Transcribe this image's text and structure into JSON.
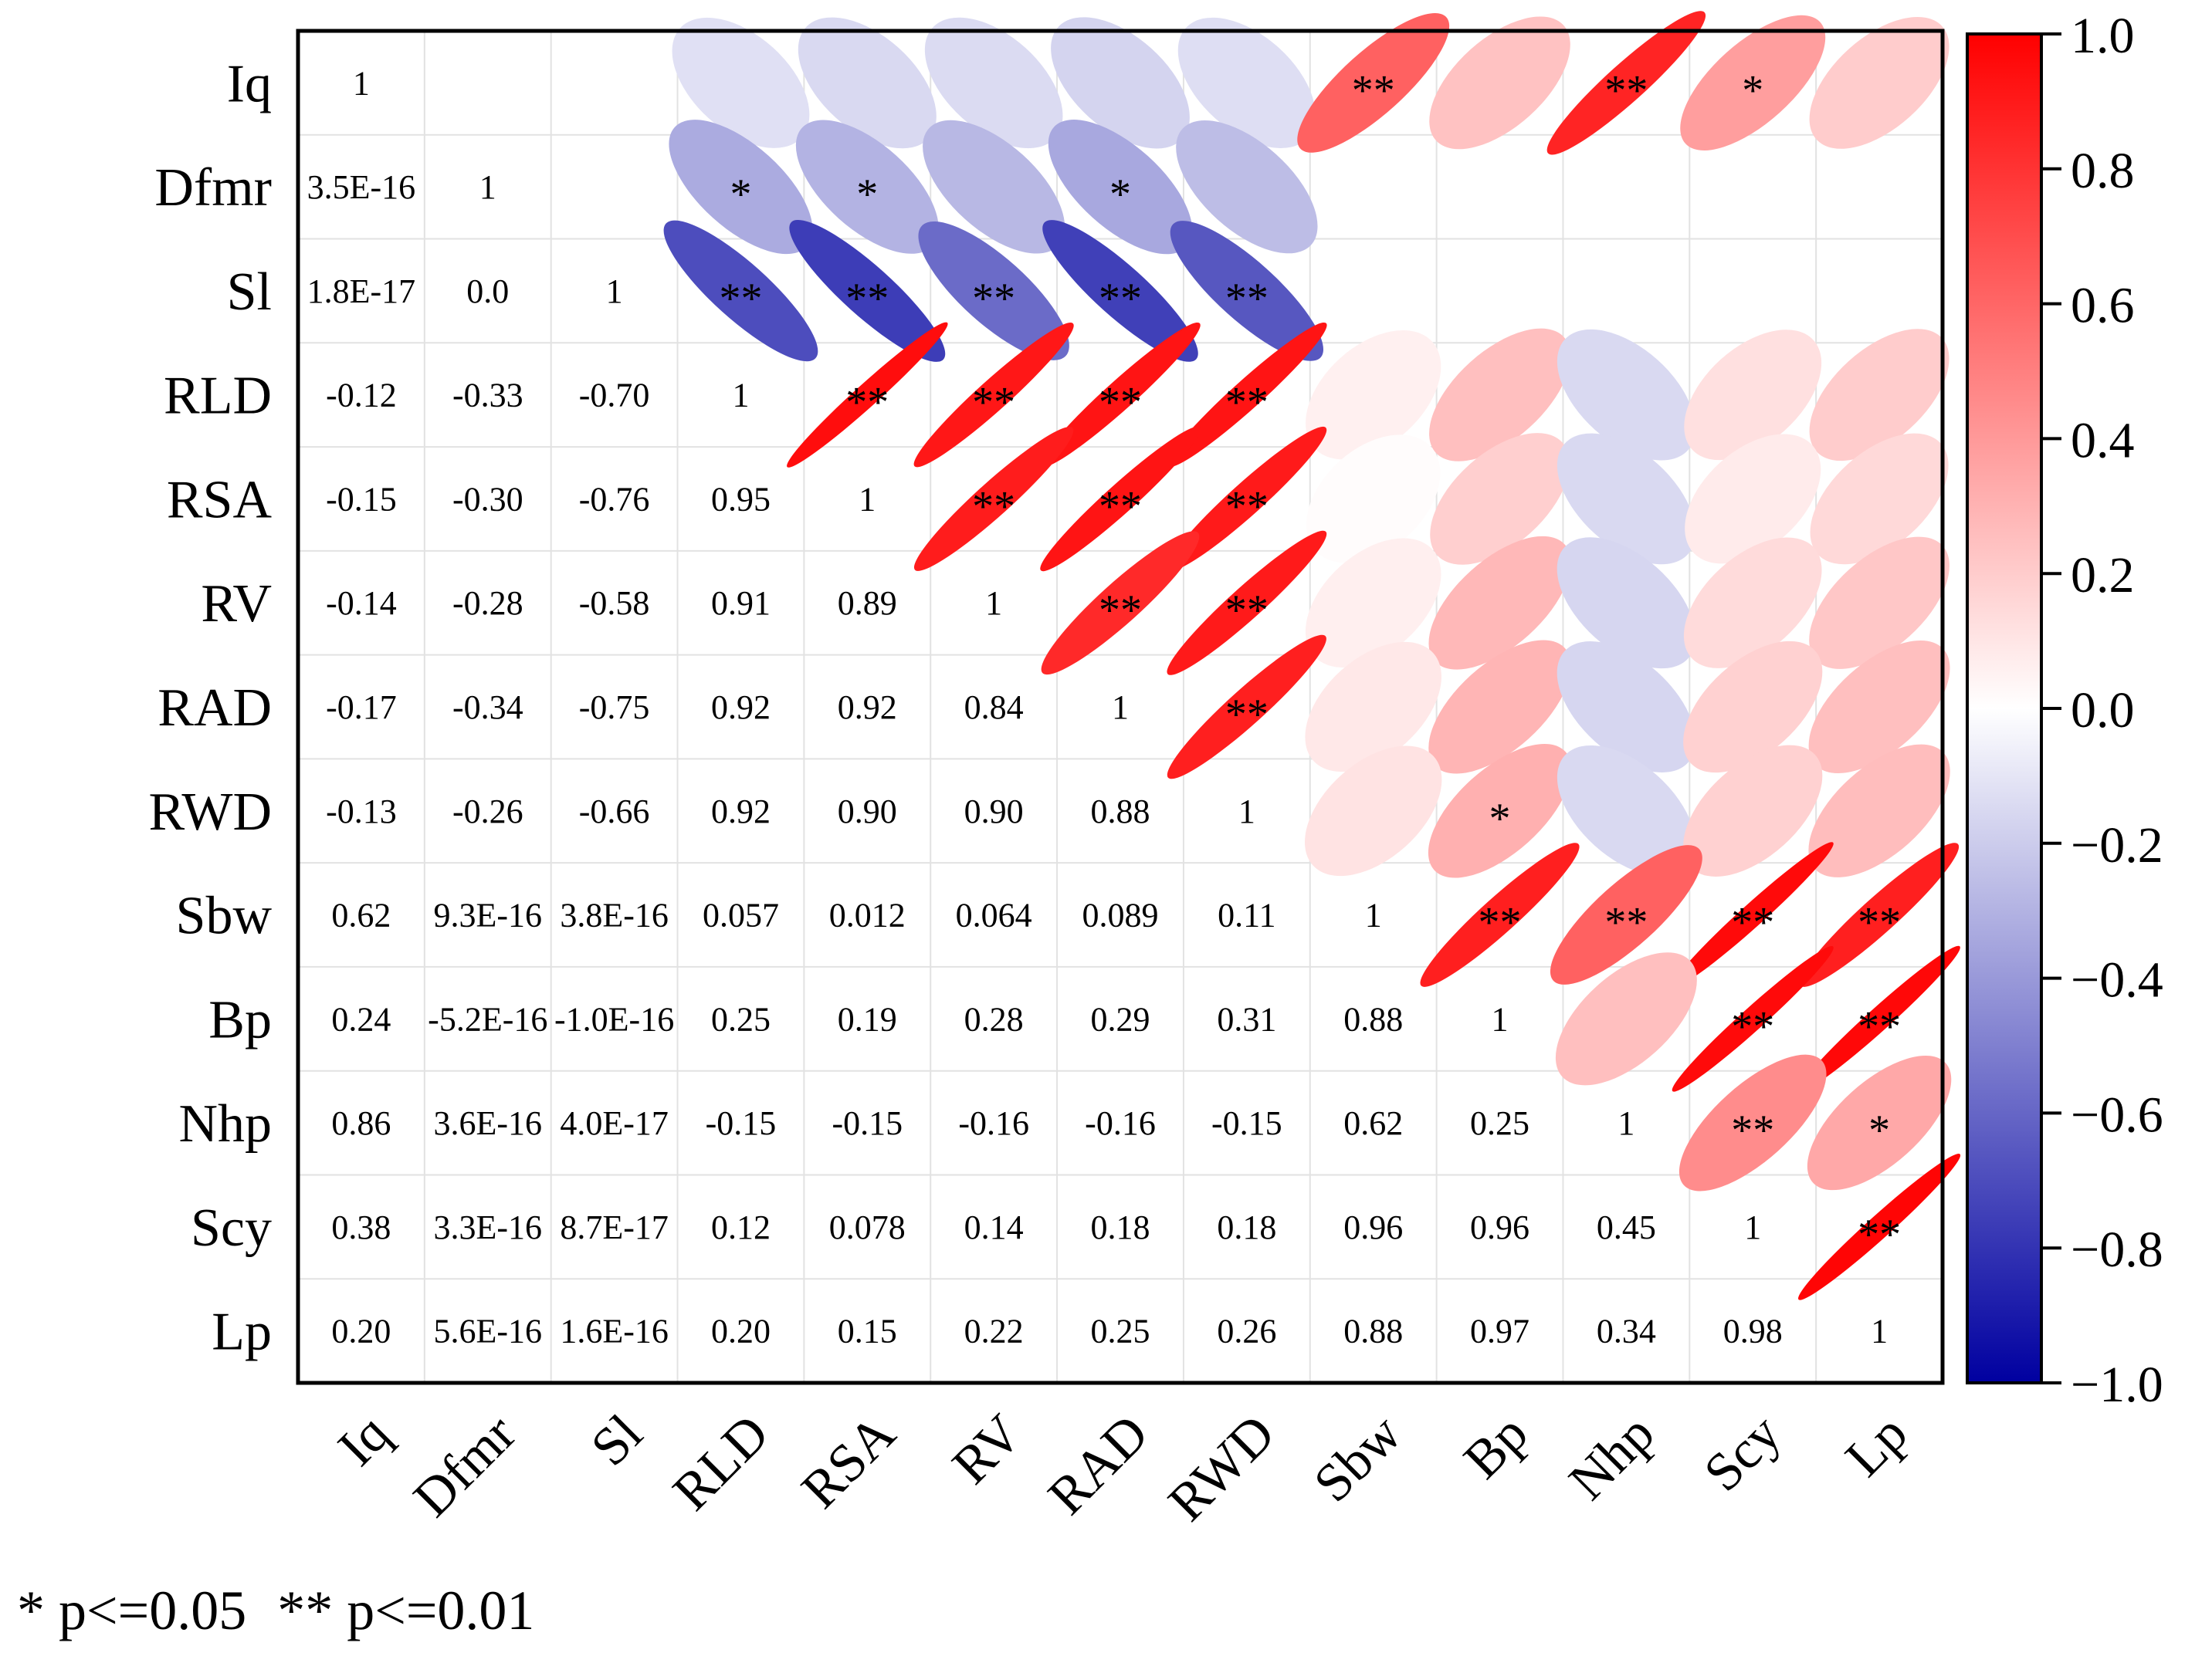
{
  "chart_data": {
    "type": "heatmap",
    "subtype": "correlation-matrix",
    "variables": [
      "Iq",
      "Dfmr",
      "Sl",
      "RLD",
      "RSA",
      "RV",
      "RAD",
      "RWD",
      "Sbw",
      "Bp",
      "Nhp",
      "Scy",
      "Lp"
    ],
    "lower_triangle_labels": [
      [
        "1"
      ],
      [
        "3.5E-16",
        "1"
      ],
      [
        "1.8E-17",
        "0.0",
        "1"
      ],
      [
        "-0.12",
        "-0.33",
        "-0.70",
        "1"
      ],
      [
        "-0.15",
        "-0.30",
        "-0.76",
        "0.95",
        "1"
      ],
      [
        "-0.14",
        "-0.28",
        "-0.58",
        "0.91",
        "0.89",
        "1"
      ],
      [
        "-0.17",
        "-0.34",
        "-0.75",
        "0.92",
        "0.92",
        "0.84",
        "1"
      ],
      [
        "-0.13",
        "-0.26",
        "-0.66",
        "0.92",
        "0.90",
        "0.90",
        "0.88",
        "1"
      ],
      [
        "0.62",
        "9.3E-16",
        "3.8E-16",
        "0.057",
        "0.012",
        "0.064",
        "0.089",
        "0.11",
        "1"
      ],
      [
        "0.24",
        "-5.2E-16",
        "-1.0E-16",
        "0.25",
        "0.19",
        "0.28",
        "0.29",
        "0.31",
        "0.88",
        "1"
      ],
      [
        "0.86",
        "3.6E-16",
        "4.0E-17",
        "-0.15",
        "-0.15",
        "-0.16",
        "-0.16",
        "-0.15",
        "0.62",
        "0.25",
        "1"
      ],
      [
        "0.38",
        "3.3E-16",
        "8.7E-17",
        "0.12",
        "0.078",
        "0.14",
        "0.18",
        "0.18",
        "0.96",
        "0.96",
        "0.45",
        "1"
      ],
      [
        "0.20",
        "5.6E-16",
        "1.6E-16",
        "0.20",
        "0.15",
        "0.22",
        "0.25",
        "0.26",
        "0.88",
        "0.97",
        "0.34",
        "0.98",
        "1"
      ]
    ],
    "significance": [
      [
        "",
        "",
        "",
        "",
        "",
        "",
        "",
        "",
        "**",
        "",
        "**",
        "*",
        ""
      ],
      [
        "",
        "",
        "",
        "*",
        "*",
        "",
        "*",
        "",
        "",
        "",
        "",
        "",
        ""
      ],
      [
        "",
        "",
        "",
        "**",
        "**",
        "**",
        "**",
        "**",
        "",
        "",
        "",
        "",
        ""
      ],
      [
        "",
        "",
        "",
        "",
        "**",
        "**",
        "**",
        "**",
        "",
        "",
        "",
        "",
        ""
      ],
      [
        "",
        "",
        "",
        "",
        "",
        "**",
        "**",
        "**",
        "",
        "",
        "",
        "",
        ""
      ],
      [
        "",
        "",
        "",
        "",
        "",
        "",
        "**",
        "**",
        "",
        "",
        "",
        "",
        ""
      ],
      [
        "",
        "",
        "",
        "",
        "",
        "",
        "",
        "**",
        "",
        "",
        "",
        "",
        ""
      ],
      [
        "",
        "",
        "",
        "",
        "",
        "",
        "",
        "",
        "",
        "*",
        "",
        "",
        ""
      ],
      [
        "",
        "",
        "",
        "",
        "",
        "",
        "",
        "",
        "",
        "**",
        "**",
        "**",
        "**"
      ],
      [
        "",
        "",
        "",
        "",
        "",
        "",
        "",
        "",
        "",
        "",
        "",
        "**",
        "**"
      ],
      [
        "",
        "",
        "",
        "",
        "",
        "",
        "",
        "",
        "",
        "",
        "",
        "**",
        "*"
      ],
      [
        "",
        "",
        "",
        "",
        "",
        "",
        "",
        "",
        "",
        "",
        "",
        "",
        "**"
      ],
      [
        "",
        "",
        "",
        "",
        "",
        "",
        "",
        "",
        "",
        "",
        "",
        "",
        ""
      ]
    ],
    "colorbar": {
      "min": -1.0,
      "max": 1.0,
      "ticks": [
        "1.0",
        "0.8",
        "0.6",
        "0.4",
        "0.2",
        "0.0",
        "-0.2",
        "-0.4",
        "-0.6",
        "-0.8",
        "-1.0"
      ],
      "colors": {
        "negative": "#0000a0",
        "zero": "#ffffff",
        "positive": "#ff0000"
      }
    }
  },
  "legend": {
    "one_star": "* p<=0.05",
    "two_star": "** p<=0.01"
  }
}
